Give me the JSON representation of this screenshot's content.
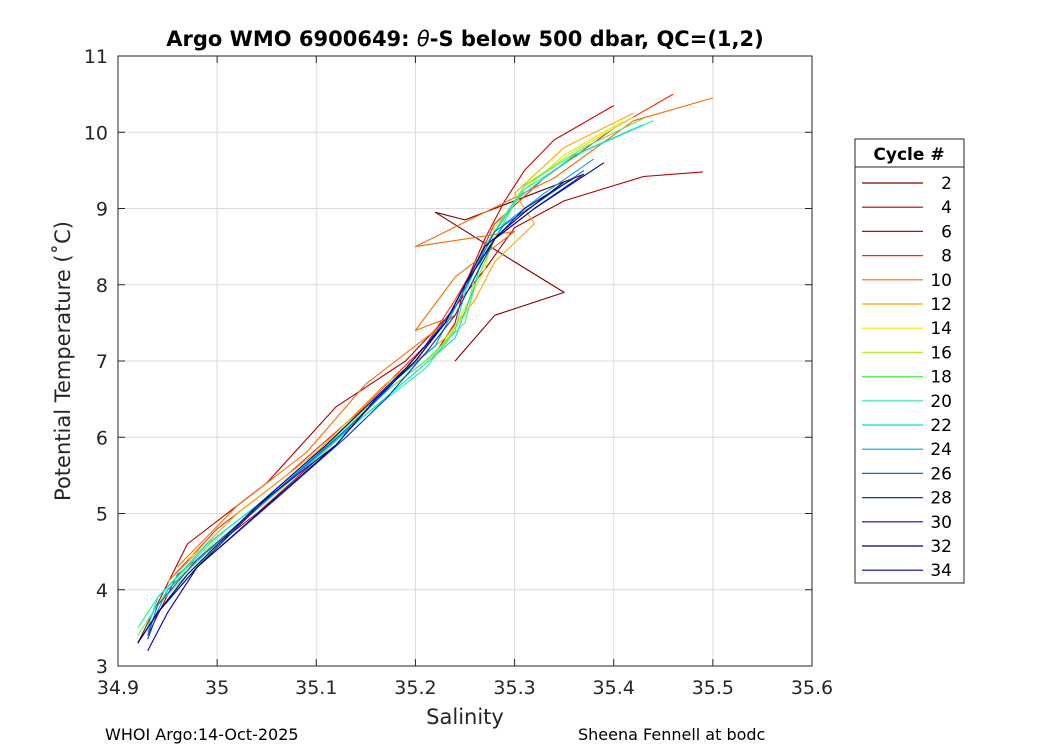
{
  "chart_data": {
    "type": "line",
    "title": "Argo WMO 6900649: θ-S below 500 dbar,  QC=(1,2)",
    "title_parts": {
      "prefix": "Argo WMO 6900649: ",
      "theta": "θ",
      "suffix": "-S below 500 dbar,  QC=(1,2)"
    },
    "xlabel": "Salinity",
    "ylabel": "Potential Temperature (˚C)",
    "xlim": [
      34.9,
      35.6
    ],
    "ylim": [
      3,
      11
    ],
    "x_ticks": [
      "34.9",
      "35",
      "35.1",
      "35.2",
      "35.3",
      "35.4",
      "35.5",
      "35.6"
    ],
    "y_ticks": [
      "3",
      "4",
      "5",
      "6",
      "7",
      "8",
      "9",
      "10",
      "11"
    ],
    "grid": true,
    "legend": {
      "title": "Cycle #",
      "location": "outside-right"
    },
    "series": [
      {
        "name": "2",
        "color": "#7f0000",
        "points": [
          [
            35.37,
            9.45
          ],
          [
            35.25,
            8.85
          ],
          [
            35.22,
            8.95
          ],
          [
            35.3,
            8.3
          ],
          [
            35.35,
            7.9
          ],
          [
            35.28,
            7.6
          ],
          [
            35.24,
            7.0
          ]
        ]
      },
      {
        "name": "4",
        "color": "#b00000",
        "points": [
          [
            35.49,
            9.48
          ],
          [
            35.43,
            9.42
          ],
          [
            35.35,
            9.1
          ],
          [
            35.3,
            8.75
          ],
          [
            35.27,
            8.2
          ],
          [
            35.23,
            7.55
          ],
          [
            35.19,
            7.0
          ],
          [
            35.12,
            6.4
          ],
          [
            35.05,
            5.4
          ],
          [
            34.97,
            4.6
          ],
          [
            34.92,
            3.3
          ]
        ]
      },
      {
        "name": "6",
        "color": "#d90000",
        "points": [
          [
            35.4,
            10.35
          ],
          [
            35.34,
            9.9
          ],
          [
            35.31,
            9.5
          ],
          [
            35.29,
            9.1
          ],
          [
            35.27,
            8.6
          ],
          [
            35.25,
            8.0
          ],
          [
            35.24,
            7.5
          ],
          [
            35.22,
            7.1
          ],
          [
            35.17,
            6.6
          ],
          [
            35.1,
            5.7
          ],
          [
            35.04,
            5.0
          ],
          [
            34.96,
            4.2
          ],
          [
            34.93,
            3.4
          ]
        ]
      },
      {
        "name": "8",
        "color": "#ff2a00",
        "points": [
          [
            35.46,
            10.5
          ],
          [
            35.4,
            10.05
          ],
          [
            35.33,
            9.4
          ],
          [
            35.28,
            8.8
          ],
          [
            35.26,
            8.25
          ],
          [
            35.24,
            7.8
          ],
          [
            35.21,
            7.2
          ],
          [
            35.14,
            6.3
          ],
          [
            35.07,
            5.5
          ],
          [
            35.0,
            4.8
          ],
          [
            34.95,
            4.1
          ]
        ]
      },
      {
        "name": "10",
        "color": "#ff6a00",
        "points": [
          [
            35.5,
            10.45
          ],
          [
            35.42,
            10.15
          ],
          [
            35.34,
            9.4
          ],
          [
            35.2,
            8.5
          ],
          [
            35.3,
            8.7
          ],
          [
            35.24,
            8.1
          ],
          [
            35.2,
            7.4
          ],
          [
            35.24,
            7.6
          ],
          [
            35.15,
            6.7
          ],
          [
            35.09,
            5.8
          ],
          [
            35.02,
            5.1
          ],
          [
            34.96,
            4.3
          ]
        ]
      },
      {
        "name": "12",
        "color": "#ffaa00",
        "points": [
          [
            35.42,
            10.25
          ],
          [
            35.35,
            9.8
          ],
          [
            35.3,
            9.2
          ],
          [
            35.32,
            8.8
          ],
          [
            35.28,
            8.3
          ],
          [
            35.26,
            7.8
          ],
          [
            35.23,
            7.3
          ],
          [
            35.17,
            6.7
          ],
          [
            35.1,
            5.8
          ],
          [
            35.02,
            5.0
          ],
          [
            34.95,
            4.1
          ]
        ]
      },
      {
        "name": "14",
        "color": "#ffe000",
        "points": [
          [
            35.41,
            10.15
          ],
          [
            35.35,
            9.7
          ],
          [
            35.31,
            9.25
          ],
          [
            35.28,
            8.75
          ],
          [
            35.27,
            8.2
          ],
          [
            35.25,
            7.7
          ],
          [
            35.23,
            7.2
          ],
          [
            35.17,
            6.6
          ],
          [
            35.1,
            5.7
          ],
          [
            35.03,
            5.0
          ],
          [
            34.97,
            4.4
          ]
        ]
      },
      {
        "name": "16",
        "color": "#b8f020",
        "points": [
          [
            35.42,
            10.2
          ],
          [
            35.36,
            9.75
          ],
          [
            35.31,
            9.3
          ],
          [
            35.28,
            8.7
          ],
          [
            35.26,
            8.1
          ],
          [
            35.25,
            7.6
          ],
          [
            35.22,
            7.1
          ],
          [
            35.16,
            6.5
          ],
          [
            35.09,
            5.6
          ],
          [
            35.01,
            4.8
          ],
          [
            34.95,
            4.0
          ],
          [
            34.93,
            3.6
          ]
        ]
      },
      {
        "name": "18",
        "color": "#50f050",
        "points": [
          [
            35.43,
            10.18
          ],
          [
            35.37,
            9.8
          ],
          [
            35.31,
            9.3
          ],
          [
            35.28,
            8.6
          ],
          [
            35.26,
            8.0
          ],
          [
            35.25,
            7.5
          ],
          [
            35.21,
            7.0
          ],
          [
            35.15,
            6.4
          ],
          [
            35.08,
            5.5
          ],
          [
            35.0,
            4.6
          ],
          [
            34.94,
            3.8
          ],
          [
            34.92,
            3.4
          ]
        ]
      },
      {
        "name": "20",
        "color": "#20f0a0",
        "points": [
          [
            35.44,
            10.15
          ],
          [
            35.37,
            9.75
          ],
          [
            35.31,
            9.25
          ],
          [
            35.27,
            8.5
          ],
          [
            35.25,
            7.9
          ],
          [
            35.24,
            7.4
          ],
          [
            35.21,
            6.9
          ],
          [
            35.15,
            6.3
          ],
          [
            35.08,
            5.5
          ],
          [
            35.0,
            4.7
          ],
          [
            34.94,
            3.9
          ],
          [
            34.92,
            3.5
          ]
        ]
      },
      {
        "name": "22",
        "color": "#00e0e0",
        "points": [
          [
            35.43,
            10.1
          ],
          [
            35.36,
            9.7
          ],
          [
            35.3,
            9.1
          ],
          [
            35.27,
            8.5
          ],
          [
            35.26,
            8.0
          ],
          [
            35.24,
            7.3
          ],
          [
            35.2,
            6.85
          ],
          [
            35.15,
            6.3
          ],
          [
            35.07,
            5.4
          ],
          [
            34.99,
            4.6
          ],
          [
            34.94,
            3.9
          ],
          [
            34.93,
            3.5
          ]
        ]
      },
      {
        "name": "24",
        "color": "#00a8e8",
        "points": [
          [
            35.38,
            9.65
          ],
          [
            35.33,
            9.2
          ],
          [
            35.29,
            8.8
          ],
          [
            35.26,
            8.2
          ],
          [
            35.24,
            7.7
          ],
          [
            35.22,
            7.2
          ],
          [
            35.18,
            6.75
          ],
          [
            35.14,
            6.2
          ],
          [
            35.07,
            5.4
          ],
          [
            34.99,
            4.5
          ],
          [
            34.95,
            4.0
          ],
          [
            34.93,
            3.45
          ]
        ]
      },
      {
        "name": "26",
        "color": "#0070e0",
        "points": [
          [
            35.37,
            9.5
          ],
          [
            35.32,
            9.05
          ],
          [
            35.28,
            8.7
          ],
          [
            35.26,
            8.2
          ],
          [
            35.24,
            7.7
          ],
          [
            35.21,
            7.2
          ],
          [
            35.17,
            6.6
          ],
          [
            35.13,
            6.1
          ],
          [
            35.06,
            5.3
          ],
          [
            34.98,
            4.4
          ],
          [
            34.94,
            3.8
          ],
          [
            34.93,
            3.4
          ]
        ]
      },
      {
        "name": "28",
        "color": "#0038d0",
        "points": [
          [
            35.37,
            9.45
          ],
          [
            35.32,
            9.0
          ],
          [
            35.28,
            8.6
          ],
          [
            35.26,
            8.1
          ],
          [
            35.24,
            7.6
          ],
          [
            35.21,
            7.1
          ],
          [
            35.17,
            6.5
          ],
          [
            35.13,
            6.0
          ],
          [
            35.06,
            5.2
          ],
          [
            34.98,
            4.3
          ],
          [
            34.94,
            3.7
          ],
          [
            34.93,
            3.35
          ]
        ]
      },
      {
        "name": "30",
        "color": "#0010b0",
        "points": [
          [
            35.36,
            9.4
          ],
          [
            35.31,
            9.0
          ],
          [
            35.28,
            8.6
          ],
          [
            35.25,
            8.0
          ],
          [
            35.23,
            7.5
          ],
          [
            35.2,
            7.0
          ],
          [
            35.16,
            6.5
          ],
          [
            35.12,
            5.9
          ],
          [
            35.05,
            5.2
          ],
          [
            34.98,
            4.3
          ],
          [
            34.94,
            3.7
          ],
          [
            34.92,
            3.3
          ]
        ]
      },
      {
        "name": "32",
        "color": "#00006f",
        "points": [
          [
            35.35,
            9.35
          ],
          [
            35.31,
            8.95
          ],
          [
            35.27,
            8.5
          ],
          [
            35.25,
            8.0
          ],
          [
            35.23,
            7.5
          ],
          [
            35.19,
            6.9
          ],
          [
            35.15,
            6.4
          ],
          [
            35.11,
            5.9
          ],
          [
            35.04,
            5.1
          ],
          [
            34.97,
            4.2
          ],
          [
            34.94,
            3.7
          ],
          [
            34.92,
            3.3
          ]
        ]
      },
      {
        "name": "34",
        "color": "#0000a0",
        "points": [
          [
            35.39,
            9.6
          ],
          [
            35.32,
            9.0
          ],
          [
            35.28,
            8.6
          ],
          [
            35.25,
            8.0
          ],
          [
            35.23,
            7.5
          ],
          [
            35.2,
            7.0
          ],
          [
            35.16,
            6.5
          ],
          [
            35.12,
            5.9
          ],
          [
            35.05,
            5.1
          ],
          [
            34.98,
            4.3
          ],
          [
            34.95,
            3.7
          ],
          [
            34.93,
            3.2
          ]
        ]
      }
    ]
  },
  "footer": {
    "left": "WHOI Argo:14-Oct-2025",
    "right": "Sheena Fennell at bodc"
  }
}
